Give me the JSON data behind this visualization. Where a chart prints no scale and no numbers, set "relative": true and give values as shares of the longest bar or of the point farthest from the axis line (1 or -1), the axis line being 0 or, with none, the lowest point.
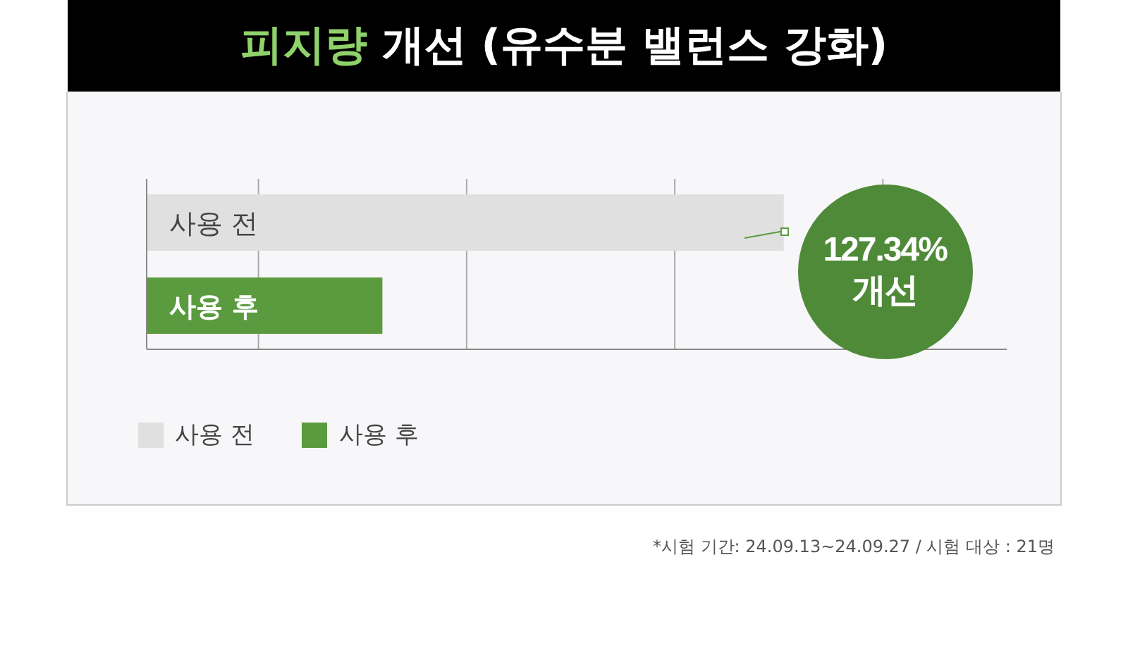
{
  "chart_data": {
    "type": "bar",
    "orientation": "horizontal",
    "relative": true,
    "title": "피지량 개선 (유수분 밸런스 강화)",
    "categories": [
      null
    ],
    "series": [
      {
        "name": "사용 전",
        "color": "#e0e0e0",
        "values": [
          1
        ]
      },
      {
        "name": "사용 후",
        "color": "#5b9b3f",
        "values": [
          0.37
        ]
      }
    ],
    "grid": "x",
    "legend": "bottom left",
    "annotations": [
      "127.34% 개선",
      "*시험 기간: 24.09.13~24.09.27 / 시험 대상 : 21명"
    ]
  }
}
